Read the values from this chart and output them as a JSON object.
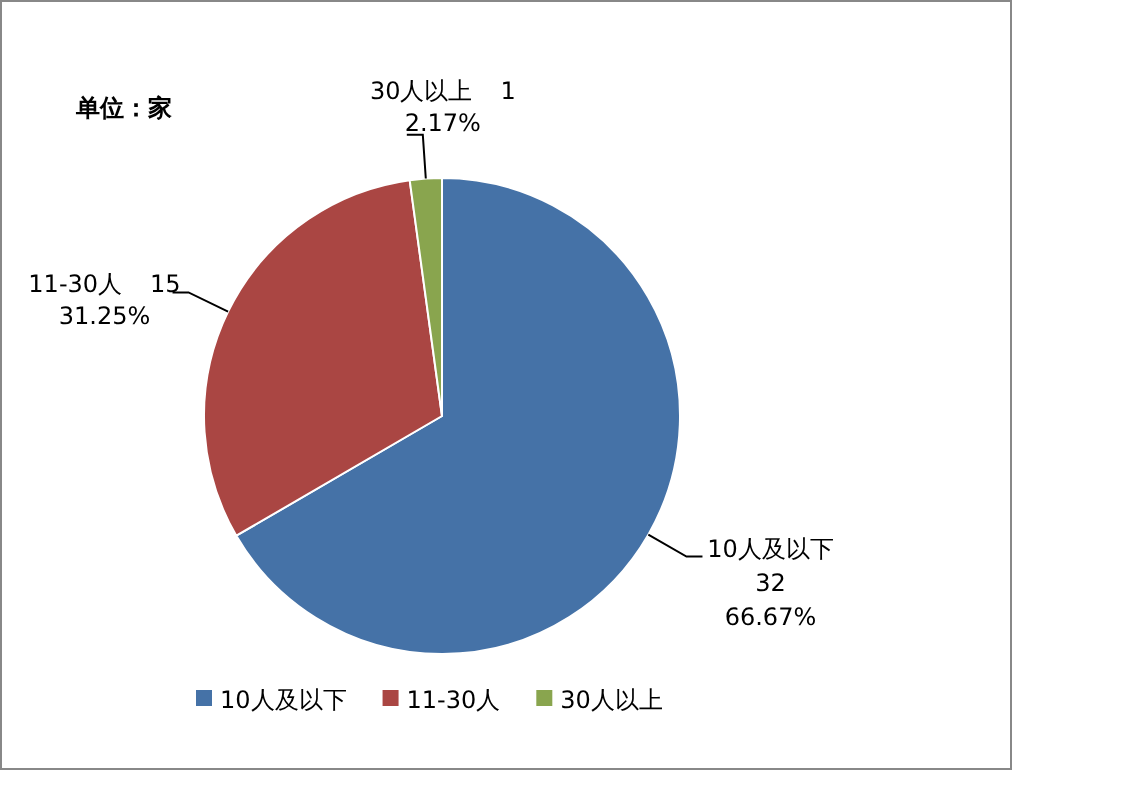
{
  "chart_data": {
    "type": "pie",
    "annotations": [
      "单位：家",
      {
        "text": "32",
        "x": "10人及以下"
      },
      {
        "text": "15",
        "x": "11-30人"
      },
      {
        "text": "1",
        "x": "30人以上"
      }
    ],
    "categories": [
      "10人及以下",
      "11-30人",
      "30人以上"
    ],
    "values": [
      66.67,
      31.25,
      2.17
    ],
    "colors": [
      "#4572a7",
      "#aa4643",
      "#89a54e"
    ],
    "value_labels": [
      "66.67%",
      "31.25%",
      "2.17%"
    ],
    "legend": "bottom"
  }
}
